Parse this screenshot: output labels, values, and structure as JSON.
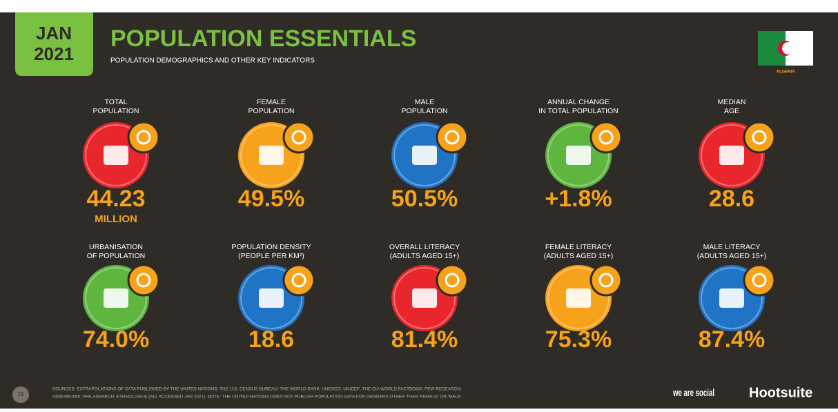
{
  "header": {
    "badge_month": "JAN",
    "badge_year": "2021",
    "title": "POPULATION ESSENTIALS",
    "subtitle": "POPULATION DEMOGRAPHICS AND OTHER KEY INDICATORS",
    "country": "ALGERIA"
  },
  "indicators": [
    {
      "label": [
        "TOTAL",
        "POPULATION"
      ],
      "value": "44.23",
      "unit": "MILLION",
      "color": "#e8262c"
    },
    {
      "label": [
        "FEMALE",
        "POPULATION"
      ],
      "value": "49.5%",
      "color": "#f7a21b"
    },
    {
      "label": [
        "MALE",
        "POPULATION"
      ],
      "value": "50.5%",
      "color": "#1f74c6"
    },
    {
      "label": [
        "ANNUAL CHANGE",
        "IN TOTAL POPULATION"
      ],
      "value": "+1.8%",
      "color": "#5fb63f"
    },
    {
      "label": [
        "MEDIAN",
        "AGE"
      ],
      "value": "28.6",
      "color": "#e8262c"
    },
    {
      "label": [
        "URBANISATION",
        "OF POPULATION"
      ],
      "value": "74.0%",
      "color": "#5fb63f"
    },
    {
      "label": [
        "POPULATION DENSITY",
        "(PEOPLE PER KM²)"
      ],
      "value": "18.6",
      "color": "#1f74c6"
    },
    {
      "label": [
        "OVERALL LITERACY",
        "(ADULTS AGED 15+)"
      ],
      "value": "81.4%",
      "color": "#e8262c"
    },
    {
      "label": [
        "FEMALE LITERACY",
        "(ADULTS AGED 15+)"
      ],
      "value": "75.3%",
      "color": "#f7a21b"
    },
    {
      "label": [
        "MALE LITERACY",
        "(ADULTS AGED 15+)"
      ],
      "value": "87.4%",
      "color": "#1f74c6"
    }
  ],
  "footer": {
    "page": "19",
    "sources": "SOURCES: EXTRAPOLATIONS OF DATA PUBLISHED BY THE UNITED NATIONS; THE U.S. CENSUS BUREAU; THE WORLD BANK; UNESCO; UNICEF; THE CIA WORLD FACTBOOK; PEW RESEARCH;",
    "sources2": "INDEXMUNDI; PHILASEARCH; ETHNOLOGUE (ALL ACCESSED JAN 2021). NOTE: THE UNITED NATIONS DOES NOT PUBLISH POPULATION DATA FOR GENDERS OTHER THAN 'FEMALE' OR 'MALE'.",
    "brand1": "we are social",
    "brand2": "Hootsuite"
  }
}
